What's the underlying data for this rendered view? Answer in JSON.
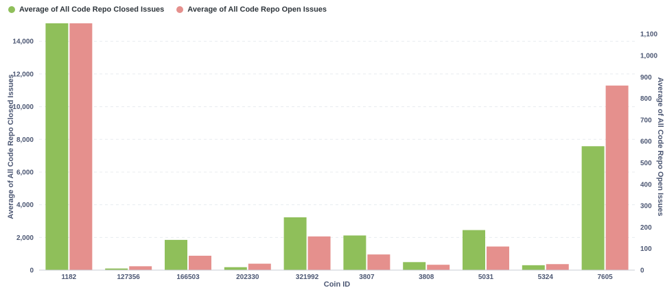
{
  "legend": {
    "series_a": "Average of All Code Repo Closed Issues",
    "series_b": "Average of All Code Repo Open Issues"
  },
  "colors": {
    "closed": "#8fbf5a",
    "open": "#e5908d",
    "grid": "#e8ebef",
    "axis": "#c9ced6"
  },
  "chart_data": {
    "type": "bar",
    "xlabel": "Coin ID",
    "ylabel_left": "Average of All Code Repo Closed Issues",
    "ylabel_right": "Average of All Code Repo Open Issues",
    "categories": [
      "1182",
      "127356",
      "166503",
      "202330",
      "321992",
      "3807",
      "3808",
      "5031",
      "5324",
      "7605"
    ],
    "series": [
      {
        "name": "Average of All Code Repo Closed Issues",
        "axis": "left",
        "values": [
          15100,
          100,
          1850,
          180,
          3230,
          2120,
          490,
          2450,
          300,
          7580
        ]
      },
      {
        "name": "Average of All Code Repo Open Issues",
        "axis": "right",
        "values": [
          1150,
          18,
          67,
          30,
          157,
          73,
          25,
          110,
          28,
          860
        ]
      }
    ],
    "ylim_left": [
      0,
      15100
    ],
    "ylim_right": [
      0,
      1150
    ],
    "yticks_left": [
      0,
      2000,
      4000,
      6000,
      8000,
      10000,
      12000,
      14000
    ],
    "yticks_left_labels": [
      "0",
      "2,000",
      "4,000",
      "6,000",
      "8,000",
      "10,000",
      "12,000",
      "14,000"
    ],
    "yticks_right": [
      0,
      100,
      200,
      300,
      400,
      500,
      600,
      700,
      800,
      900,
      1000,
      1100
    ],
    "yticks_right_labels": [
      "0",
      "100",
      "200",
      "300",
      "400",
      "500",
      "600",
      "700",
      "800",
      "900",
      "1,000",
      "1,100"
    ],
    "grid": true,
    "legend_position": "top-left"
  }
}
